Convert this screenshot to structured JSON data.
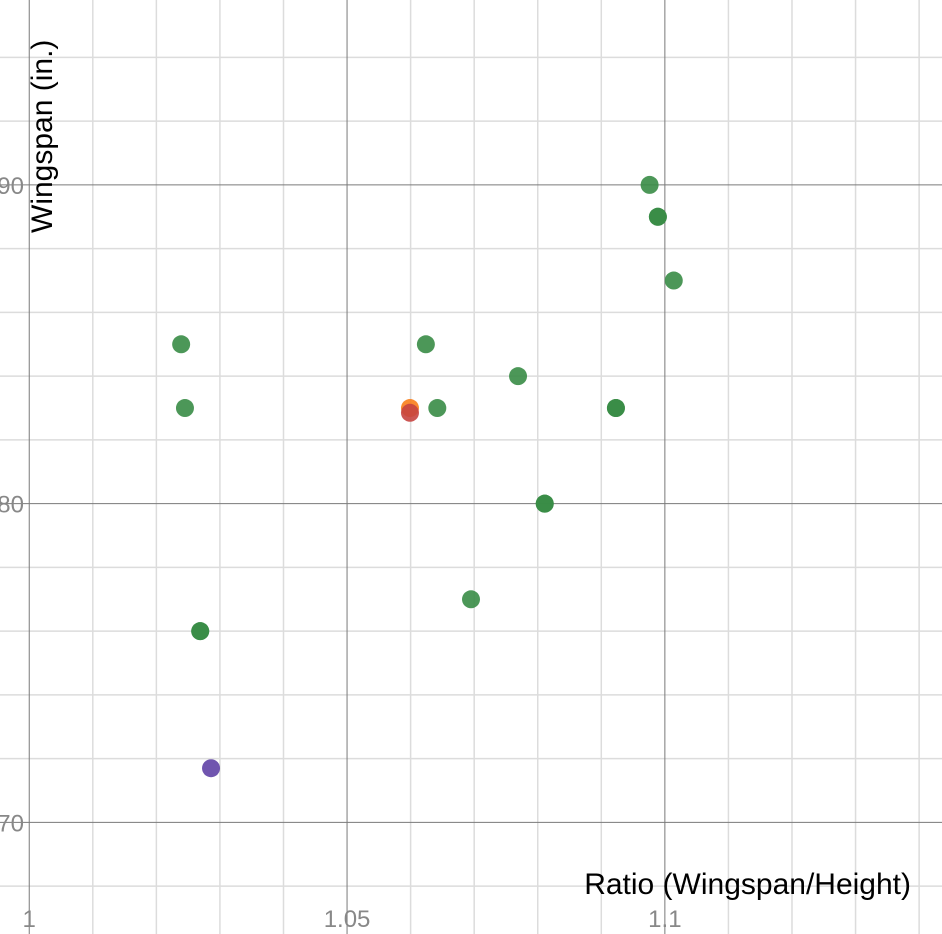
{
  "chart_data": {
    "type": "scatter",
    "title": "",
    "xlabel": "Ratio (Wingspan/Height)",
    "ylabel": "Wingspan (in.)",
    "xlim": [
      0.9954,
      1.1436
    ],
    "ylim": [
      66.5,
      95.8
    ],
    "x_major_ticks": [
      1,
      1.05,
      1.1
    ],
    "x_tick_labels": [
      "1",
      "1.05",
      "1.1"
    ],
    "x_minor_step": 0.01,
    "y_major_ticks": [
      90,
      80,
      70
    ],
    "y_tick_labels": [
      "90",
      "80",
      "70"
    ],
    "y_minor_step": 2,
    "grid": true,
    "colors": {
      "green": "#388c46",
      "red": "#c74440",
      "orange": "#fa7e19",
      "purple": "#6042a6",
      "major_grid": "#7a7a7a",
      "minor_grid": "#dcdcdc"
    },
    "series": [
      {
        "name": "green",
        "color": "#388c46",
        "points": [
          [
            1.0239,
            85
          ],
          [
            1.0245,
            83
          ],
          [
            1.0269,
            76
          ],
          [
            1.0269,
            76
          ],
          [
            1.0624,
            85
          ],
          [
            1.0642,
            83
          ],
          [
            1.0695,
            77
          ],
          [
            1.0769,
            84
          ],
          [
            1.0811,
            80
          ],
          [
            1.0811,
            80
          ],
          [
            1.0923,
            83
          ],
          [
            1.0923,
            83
          ],
          [
            1.0976,
            90
          ],
          [
            1.0989,
            89
          ],
          [
            1.0989,
            89
          ],
          [
            1.1014,
            87
          ]
        ]
      },
      {
        "name": "orange",
        "color": "#fa7e19",
        "points": [
          [
            1.0599,
            83
          ]
        ]
      },
      {
        "name": "red",
        "color": "#c74440",
        "points": [
          [
            1.0599,
            82.85
          ]
        ]
      },
      {
        "name": "purple",
        "color": "#6042a6",
        "points": [
          [
            1.0286,
            71.7
          ]
        ]
      }
    ]
  }
}
